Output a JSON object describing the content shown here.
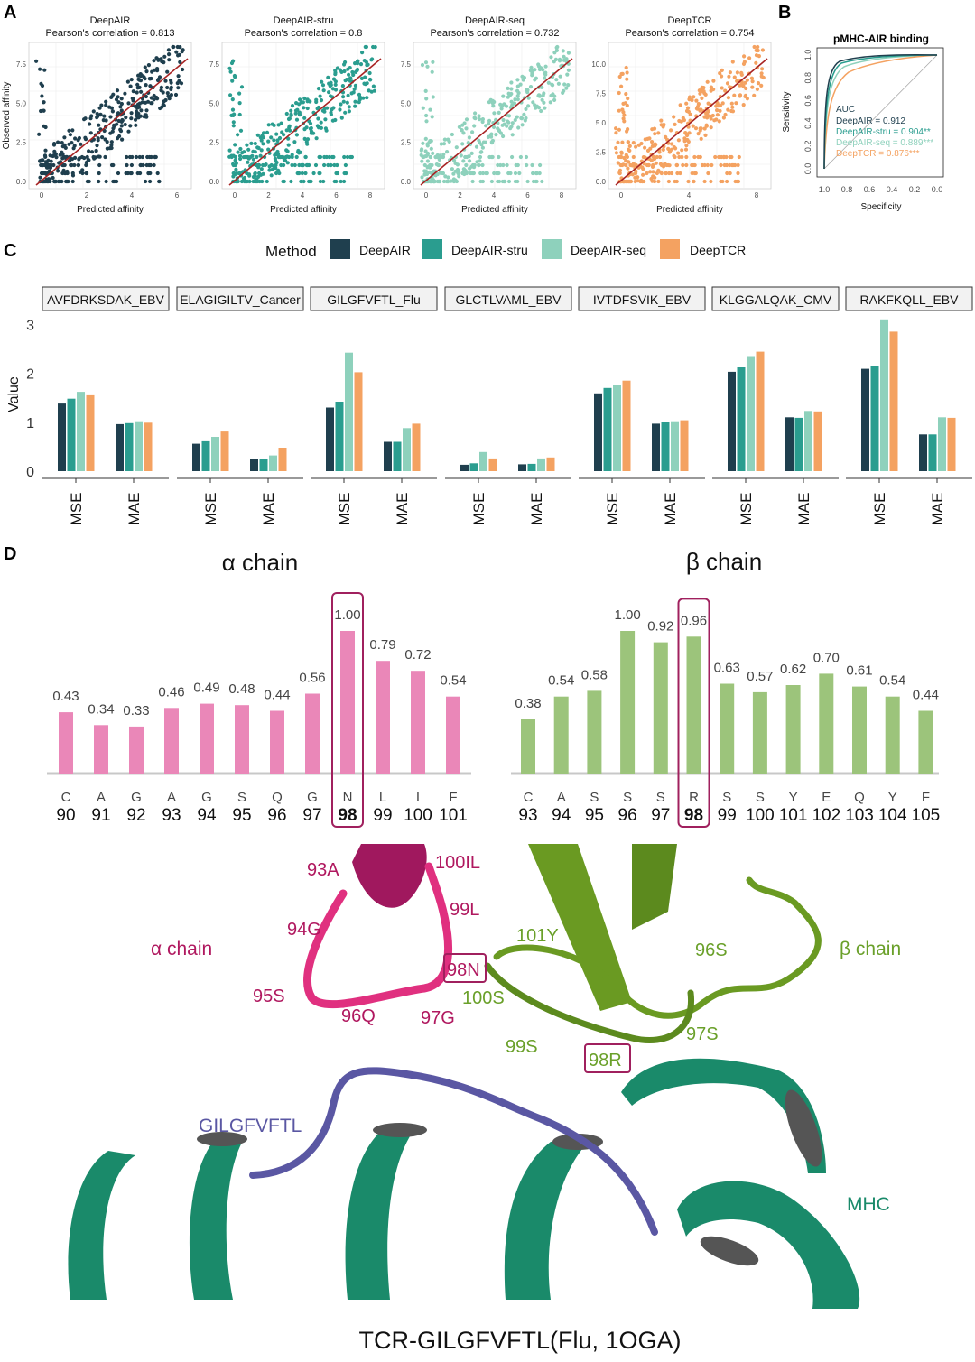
{
  "colors": {
    "deepair": "#1f3f4e",
    "stru": "#2a9d8f",
    "seq": "#8ed1bc",
    "deeptcr": "#f4a261",
    "fitline": "#a82424",
    "alpha_bar": "#ea87b8",
    "beta_bar": "#9cc47b",
    "highlight": "#a0205e",
    "alpha_text": "#b0185f",
    "beta_text": "#6aa02a",
    "mhc": "#1a8a6a",
    "peptide": "#5a57a3"
  },
  "panel_labels": {
    "a": "A",
    "b": "B",
    "c": "C",
    "d": "D"
  },
  "panel_a": {
    "xlabel": "Predicted affinity",
    "ylabel": "Observed affinity",
    "corr_prefix": "Pearson's correlation = ",
    "plots": [
      {
        "name": "DeepAIR",
        "corr": "0.813",
        "color_key": "deepair",
        "xticks": [
          "0",
          "2",
          "4",
          "6"
        ],
        "yticks": [
          "0.0",
          "2.5",
          "5.0",
          "7.5"
        ]
      },
      {
        "name": "DeepAIR-stru",
        "corr": "0.8",
        "color_key": "stru",
        "xticks": [
          "0",
          "2",
          "4",
          "6",
          "8"
        ],
        "yticks": [
          "0.0",
          "2.5",
          "5.0",
          "7.5"
        ]
      },
      {
        "name": "DeepAIR-seq",
        "corr": "0.732",
        "color_key": "seq",
        "xticks": [
          "0",
          "2",
          "4",
          "6",
          "8"
        ],
        "yticks": [
          "0.0",
          "2.5",
          "5.0",
          "7.5"
        ]
      },
      {
        "name": "DeepTCR",
        "corr": "0.754",
        "color_key": "deeptcr",
        "xticks": [
          "0",
          "4",
          "8"
        ],
        "yticks": [
          "0.0",
          "2.5",
          "5.0",
          "7.5",
          "10.0"
        ]
      }
    ]
  },
  "panel_b": {
    "title": "pMHC-AIR binding",
    "xlabel": "Specificity",
    "ylabel": "Sensitivity",
    "xticks": [
      "1.0",
      "0.8",
      "0.6",
      "0.4",
      "0.2",
      "0.0"
    ],
    "yticks": [
      "0.0",
      "0.2",
      "0.4",
      "0.6",
      "0.8",
      "1.0"
    ],
    "auc_title": "AUC",
    "auc": [
      {
        "label": "DeepAIR = 0.912",
        "color_key": "deepair"
      },
      {
        "label": "DeepAIR-stru = 0.904**",
        "color_key": "stru"
      },
      {
        "label": "DeepAIR-seq = 0.889***",
        "color_key": "seq"
      },
      {
        "label": "DeepTCR = 0.876***",
        "color_key": "deeptcr"
      }
    ]
  },
  "chart_data": [
    {
      "type": "bar",
      "title": "Method",
      "ylabel": "Value",
      "ylim": [
        0,
        3.3
      ],
      "yticks": [
        "0",
        "1",
        "2",
        "3"
      ],
      "series_names": [
        "DeepAIR",
        "DeepAIR-stru",
        "DeepAIR-seq",
        "DeepTCR"
      ],
      "metrics": [
        "MSE",
        "MAE"
      ],
      "facets": [
        {
          "epitope": "AVFDRKSDAK_EBV",
          "MSE": [
            1.38,
            1.48,
            1.62,
            1.55
          ],
          "MAE": [
            0.96,
            0.98,
            1.02,
            0.99
          ]
        },
        {
          "epitope": "ELAGIGILTV_Cancer",
          "MSE": [
            0.56,
            0.61,
            0.7,
            0.81
          ],
          "MAE": [
            0.25,
            0.25,
            0.32,
            0.48
          ]
        },
        {
          "epitope": "GILGFVFTL_Flu",
          "MSE": [
            1.3,
            1.42,
            2.42,
            2.02
          ],
          "MAE": [
            0.6,
            0.6,
            0.88,
            0.97
          ]
        },
        {
          "epitope": "GLCTLVAML_EBV",
          "MSE": [
            0.13,
            0.16,
            0.39,
            0.26
          ],
          "MAE": [
            0.14,
            0.15,
            0.26,
            0.28
          ]
        },
        {
          "epitope": "IVTDFSVIK_EBV",
          "MSE": [
            1.59,
            1.7,
            1.76,
            1.85
          ],
          "MAE": [
            0.97,
            1.0,
            1.02,
            1.04
          ]
        },
        {
          "epitope": "KLGGALQAK_CMV",
          "MSE": [
            2.03,
            2.12,
            2.35,
            2.44
          ],
          "MAE": [
            1.1,
            1.09,
            1.23,
            1.22
          ]
        },
        {
          "epitope": "RAKFKQLL_EBV",
          "MSE": [
            2.09,
            2.15,
            3.1,
            2.85
          ],
          "MAE": [
            0.75,
            0.75,
            1.1,
            1.09
          ]
        }
      ]
    },
    {
      "type": "bar",
      "title": "α chain",
      "categories": [
        "C",
        "A",
        "G",
        "A",
        "G",
        "S",
        "Q",
        "G",
        "N",
        "L",
        "I",
        "F"
      ],
      "positions": [
        "90",
        "91",
        "92",
        "93",
        "94",
        "95",
        "96",
        "97",
        "98",
        "99",
        "100",
        "101"
      ],
      "values": [
        0.43,
        0.34,
        0.33,
        0.46,
        0.49,
        0.48,
        0.44,
        0.56,
        1.0,
        0.79,
        0.72,
        0.54
      ],
      "labels": [
        "0.43",
        "0.34",
        "0.33",
        "0.46",
        "0.49",
        "0.48",
        "0.44",
        "0.56",
        "1.00",
        "0.79",
        "0.72",
        "0.54"
      ],
      "highlight_index": 8,
      "ylim": [
        0,
        1
      ]
    },
    {
      "type": "bar",
      "title": "β chain",
      "categories": [
        "C",
        "A",
        "S",
        "S",
        "S",
        "R",
        "S",
        "S",
        "Y",
        "E",
        "Q",
        "Y",
        "F"
      ],
      "positions": [
        "93",
        "94",
        "95",
        "96",
        "97",
        "98",
        "99",
        "100",
        "101",
        "102",
        "103",
        "104",
        "105"
      ],
      "values": [
        0.38,
        0.54,
        0.58,
        1.0,
        0.92,
        0.96,
        0.63,
        0.57,
        0.62,
        0.7,
        0.61,
        0.54,
        0.44
      ],
      "labels": [
        "0.38",
        "0.54",
        "0.58",
        "1.00",
        "0.92",
        "0.96",
        "0.63",
        "0.57",
        "0.62",
        "0.70",
        "0.61",
        "0.54",
        "0.44"
      ],
      "highlight_index": 5,
      "ylim": [
        0,
        1
      ]
    }
  ],
  "panel_c_legend": {
    "title": "Method",
    "items": [
      {
        "label": "DeepAIR",
        "color_key": "deepair"
      },
      {
        "label": "DeepAIR-stru",
        "color_key": "stru"
      },
      {
        "label": "DeepAIR-seq",
        "color_key": "seq"
      },
      {
        "label": "DeepTCR",
        "color_key": "deeptcr"
      }
    ]
  },
  "panel_d_structure": {
    "alpha_label": "α chain",
    "beta_label": "β chain",
    "alpha_residues": [
      "93A",
      "100IL",
      "99L",
      "94G",
      "98N",
      "95S",
      "96Q",
      "97G"
    ],
    "beta_residues": [
      "101Y",
      "96S",
      "100S",
      "99S",
      "98R",
      "97S"
    ],
    "peptide": "GILGFVFTL",
    "mhc": "MHC",
    "caption": "TCR-GILGFVFTL(Flu, 1OGA)"
  }
}
